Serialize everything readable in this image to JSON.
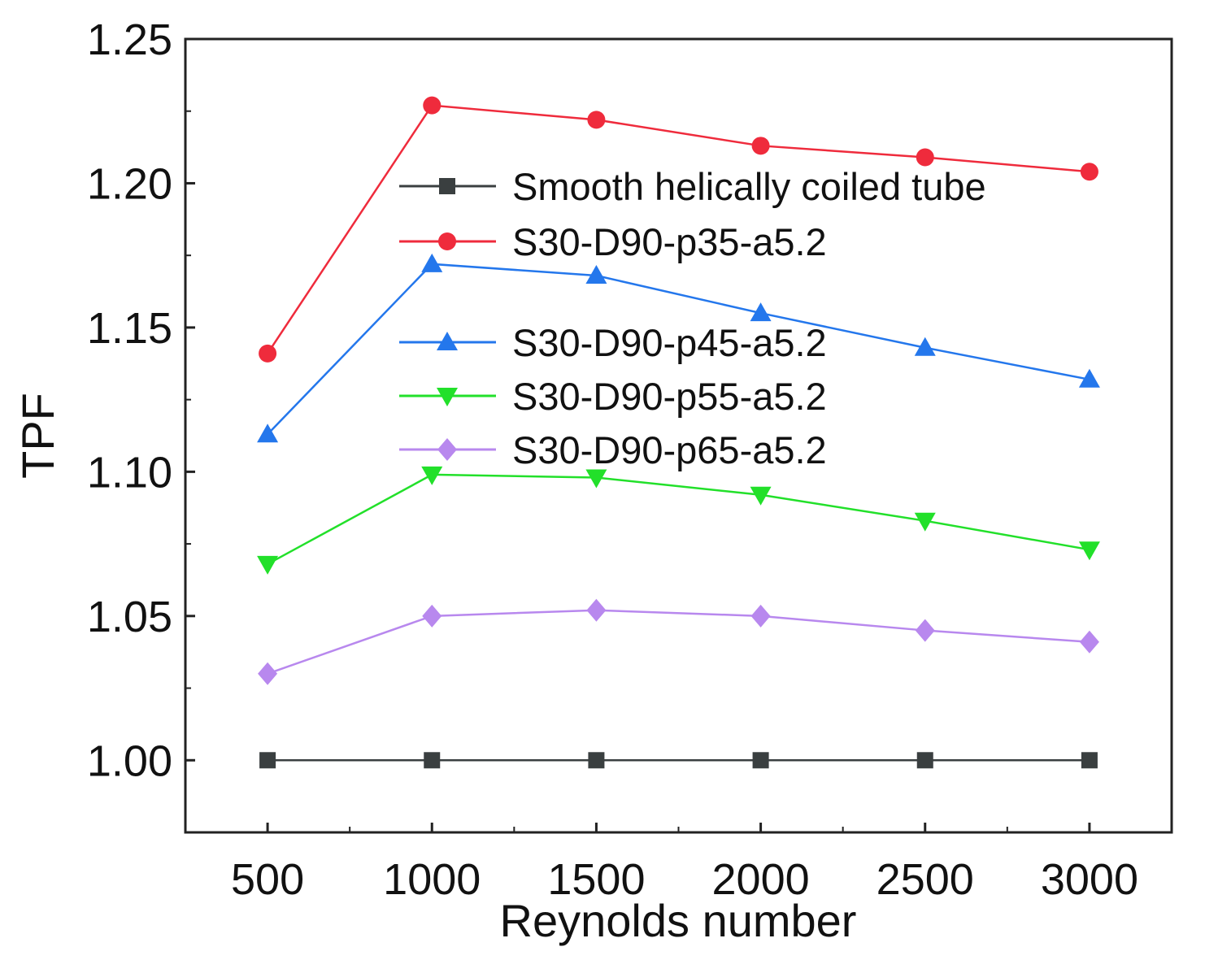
{
  "chart_data": {
    "type": "line",
    "title": "",
    "xlabel": "Reynolds number",
    "ylabel": "TPF",
    "x": [
      500,
      1000,
      1500,
      2000,
      2500,
      3000
    ],
    "xlim": [
      250,
      3250
    ],
    "ylim": [
      0.975,
      1.25
    ],
    "xticks": [
      "500",
      "1000",
      "1500",
      "2000",
      "2500",
      "3000"
    ],
    "yticks": [
      "1.00",
      "1.05",
      "1.10",
      "1.15",
      "1.20",
      "1.25"
    ],
    "grid": false,
    "legend_position": "top-right",
    "series": [
      {
        "name": "Smooth helically coiled tube",
        "marker": "square",
        "color": "#3a3f40",
        "values": [
          1.0,
          1.0,
          1.0,
          1.0,
          1.0,
          1.0
        ]
      },
      {
        "name": "S30-D90-p35-a5.2",
        "marker": "circle",
        "color": "#ef2b3c",
        "values": [
          1.141,
          1.227,
          1.222,
          1.213,
          1.209,
          1.204
        ]
      },
      {
        "name": "S30-D90-p45-a5.2",
        "marker": "triangle-up",
        "color": "#2477ec",
        "values": [
          1.113,
          1.172,
          1.168,
          1.155,
          1.143,
          1.132
        ]
      },
      {
        "name": "S30-D90-p55-a5.2",
        "marker": "triangle-down",
        "color": "#22e02a",
        "values": [
          1.068,
          1.099,
          1.098,
          1.092,
          1.083,
          1.073
        ]
      },
      {
        "name": "S30-D90-p65-a5.2",
        "marker": "diamond",
        "color": "#b888ee",
        "values": [
          1.03,
          1.05,
          1.052,
          1.05,
          1.045,
          1.041
        ]
      }
    ]
  }
}
